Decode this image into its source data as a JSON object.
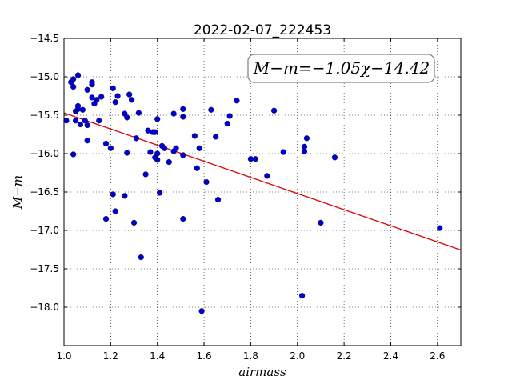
{
  "chart_data": {
    "type": "scatter",
    "title": "2022-02-07_222453",
    "xlabel": "airmass",
    "ylabel": "M−m",
    "xlim": [
      1.0,
      2.7
    ],
    "ylim": [
      -18.5,
      -14.5
    ],
    "y_inverted": true,
    "grid": true,
    "grid_style": "dotted",
    "x_ticks": [
      1.0,
      1.2,
      1.4,
      1.6,
      1.8,
      2.0,
      2.2,
      2.4,
      2.6
    ],
    "x_tick_labels": [
      "1.0",
      "1.2",
      "1.4",
      "1.6",
      "1.8",
      "2.0",
      "2.2",
      "2.4",
      "2.6"
    ],
    "y_ticks": [
      -14.5,
      -15.0,
      -15.5,
      -16.0,
      -16.5,
      -17.0,
      -17.5,
      -18.0
    ],
    "y_tick_labels": [
      "−14.5",
      "−15.0",
      "−15.5",
      "−16.0",
      "−16.5",
      "−17.0",
      "−17.5",
      "−18.0"
    ],
    "point_color": "#0000cc",
    "fit_color": "#dd0000",
    "annotation": "M−m=−1.05χ−14.42",
    "fit": {
      "slope": -1.05,
      "intercept": -14.42
    },
    "points": [
      [
        1.01,
        -15.57
      ],
      [
        1.03,
        -15.07
      ],
      [
        1.04,
        -15.03
      ],
      [
        1.04,
        -15.13
      ],
      [
        1.04,
        -16.01
      ],
      [
        1.05,
        -15.57
      ],
      [
        1.05,
        -15.45
      ],
      [
        1.06,
        -15.38
      ],
      [
        1.06,
        -15.42
      ],
      [
        1.06,
        -14.98
      ],
      [
        1.07,
        -15.62
      ],
      [
        1.08,
        -15.43
      ],
      [
        1.09,
        -15.57
      ],
      [
        1.1,
        -15.63
      ],
      [
        1.1,
        -15.83
      ],
      [
        1.1,
        -15.17
      ],
      [
        1.12,
        -15.1
      ],
      [
        1.12,
        -15.07
      ],
      [
        1.12,
        -15.27
      ],
      [
        1.13,
        -15.35
      ],
      [
        1.14,
        -15.3
      ],
      [
        1.15,
        -15.57
      ],
      [
        1.16,
        -15.26
      ],
      [
        1.18,
        -16.85
      ],
      [
        1.18,
        -15.87
      ],
      [
        1.2,
        -15.93
      ],
      [
        1.21,
        -15.15
      ],
      [
        1.21,
        -16.53
      ],
      [
        1.22,
        -15.33
      ],
      [
        1.22,
        -16.75
      ],
      [
        1.23,
        -15.25
      ],
      [
        1.26,
        -15.48
      ],
      [
        1.26,
        -16.55
      ],
      [
        1.27,
        -15.53
      ],
      [
        1.27,
        -15.99
      ],
      [
        1.28,
        -15.23
      ],
      [
        1.29,
        -15.3
      ],
      [
        1.3,
        -16.9
      ],
      [
        1.31,
        -15.8
      ],
      [
        1.32,
        -15.47
      ],
      [
        1.33,
        -17.35
      ],
      [
        1.35,
        -16.27
      ],
      [
        1.36,
        -15.7
      ],
      [
        1.37,
        -15.98
      ],
      [
        1.38,
        -15.72
      ],
      [
        1.39,
        -15.72
      ],
      [
        1.39,
        -16.05
      ],
      [
        1.4,
        -15.55
      ],
      [
        1.4,
        -16.08
      ],
      [
        1.4,
        -16.0
      ],
      [
        1.41,
        -16.51
      ],
      [
        1.42,
        -15.9
      ],
      [
        1.43,
        -15.93
      ],
      [
        1.45,
        -16.11
      ],
      [
        1.47,
        -15.48
      ],
      [
        1.47,
        -15.97
      ],
      [
        1.48,
        -15.93
      ],
      [
        1.51,
        -15.42
      ],
      [
        1.51,
        -15.52
      ],
      [
        1.51,
        -16.02
      ],
      [
        1.51,
        -16.85
      ],
      [
        1.56,
        -15.77
      ],
      [
        1.57,
        -16.19
      ],
      [
        1.58,
        -15.93
      ],
      [
        1.59,
        -18.05
      ],
      [
        1.61,
        -16.37
      ],
      [
        1.63,
        -15.43
      ],
      [
        1.65,
        -15.78
      ],
      [
        1.66,
        -16.6
      ],
      [
        1.7,
        -15.61
      ],
      [
        1.71,
        -15.51
      ],
      [
        1.74,
        -15.31
      ],
      [
        1.8,
        -16.07
      ],
      [
        1.82,
        -16.07
      ],
      [
        1.87,
        -16.29
      ],
      [
        1.9,
        -15.44
      ],
      [
        1.94,
        -15.98
      ],
      [
        2.02,
        -17.85
      ],
      [
        2.03,
        -15.97
      ],
      [
        2.03,
        -15.91
      ],
      [
        2.04,
        -15.8
      ],
      [
        2.1,
        -16.9
      ],
      [
        2.16,
        -16.05
      ],
      [
        2.61,
        -16.97
      ]
    ]
  }
}
